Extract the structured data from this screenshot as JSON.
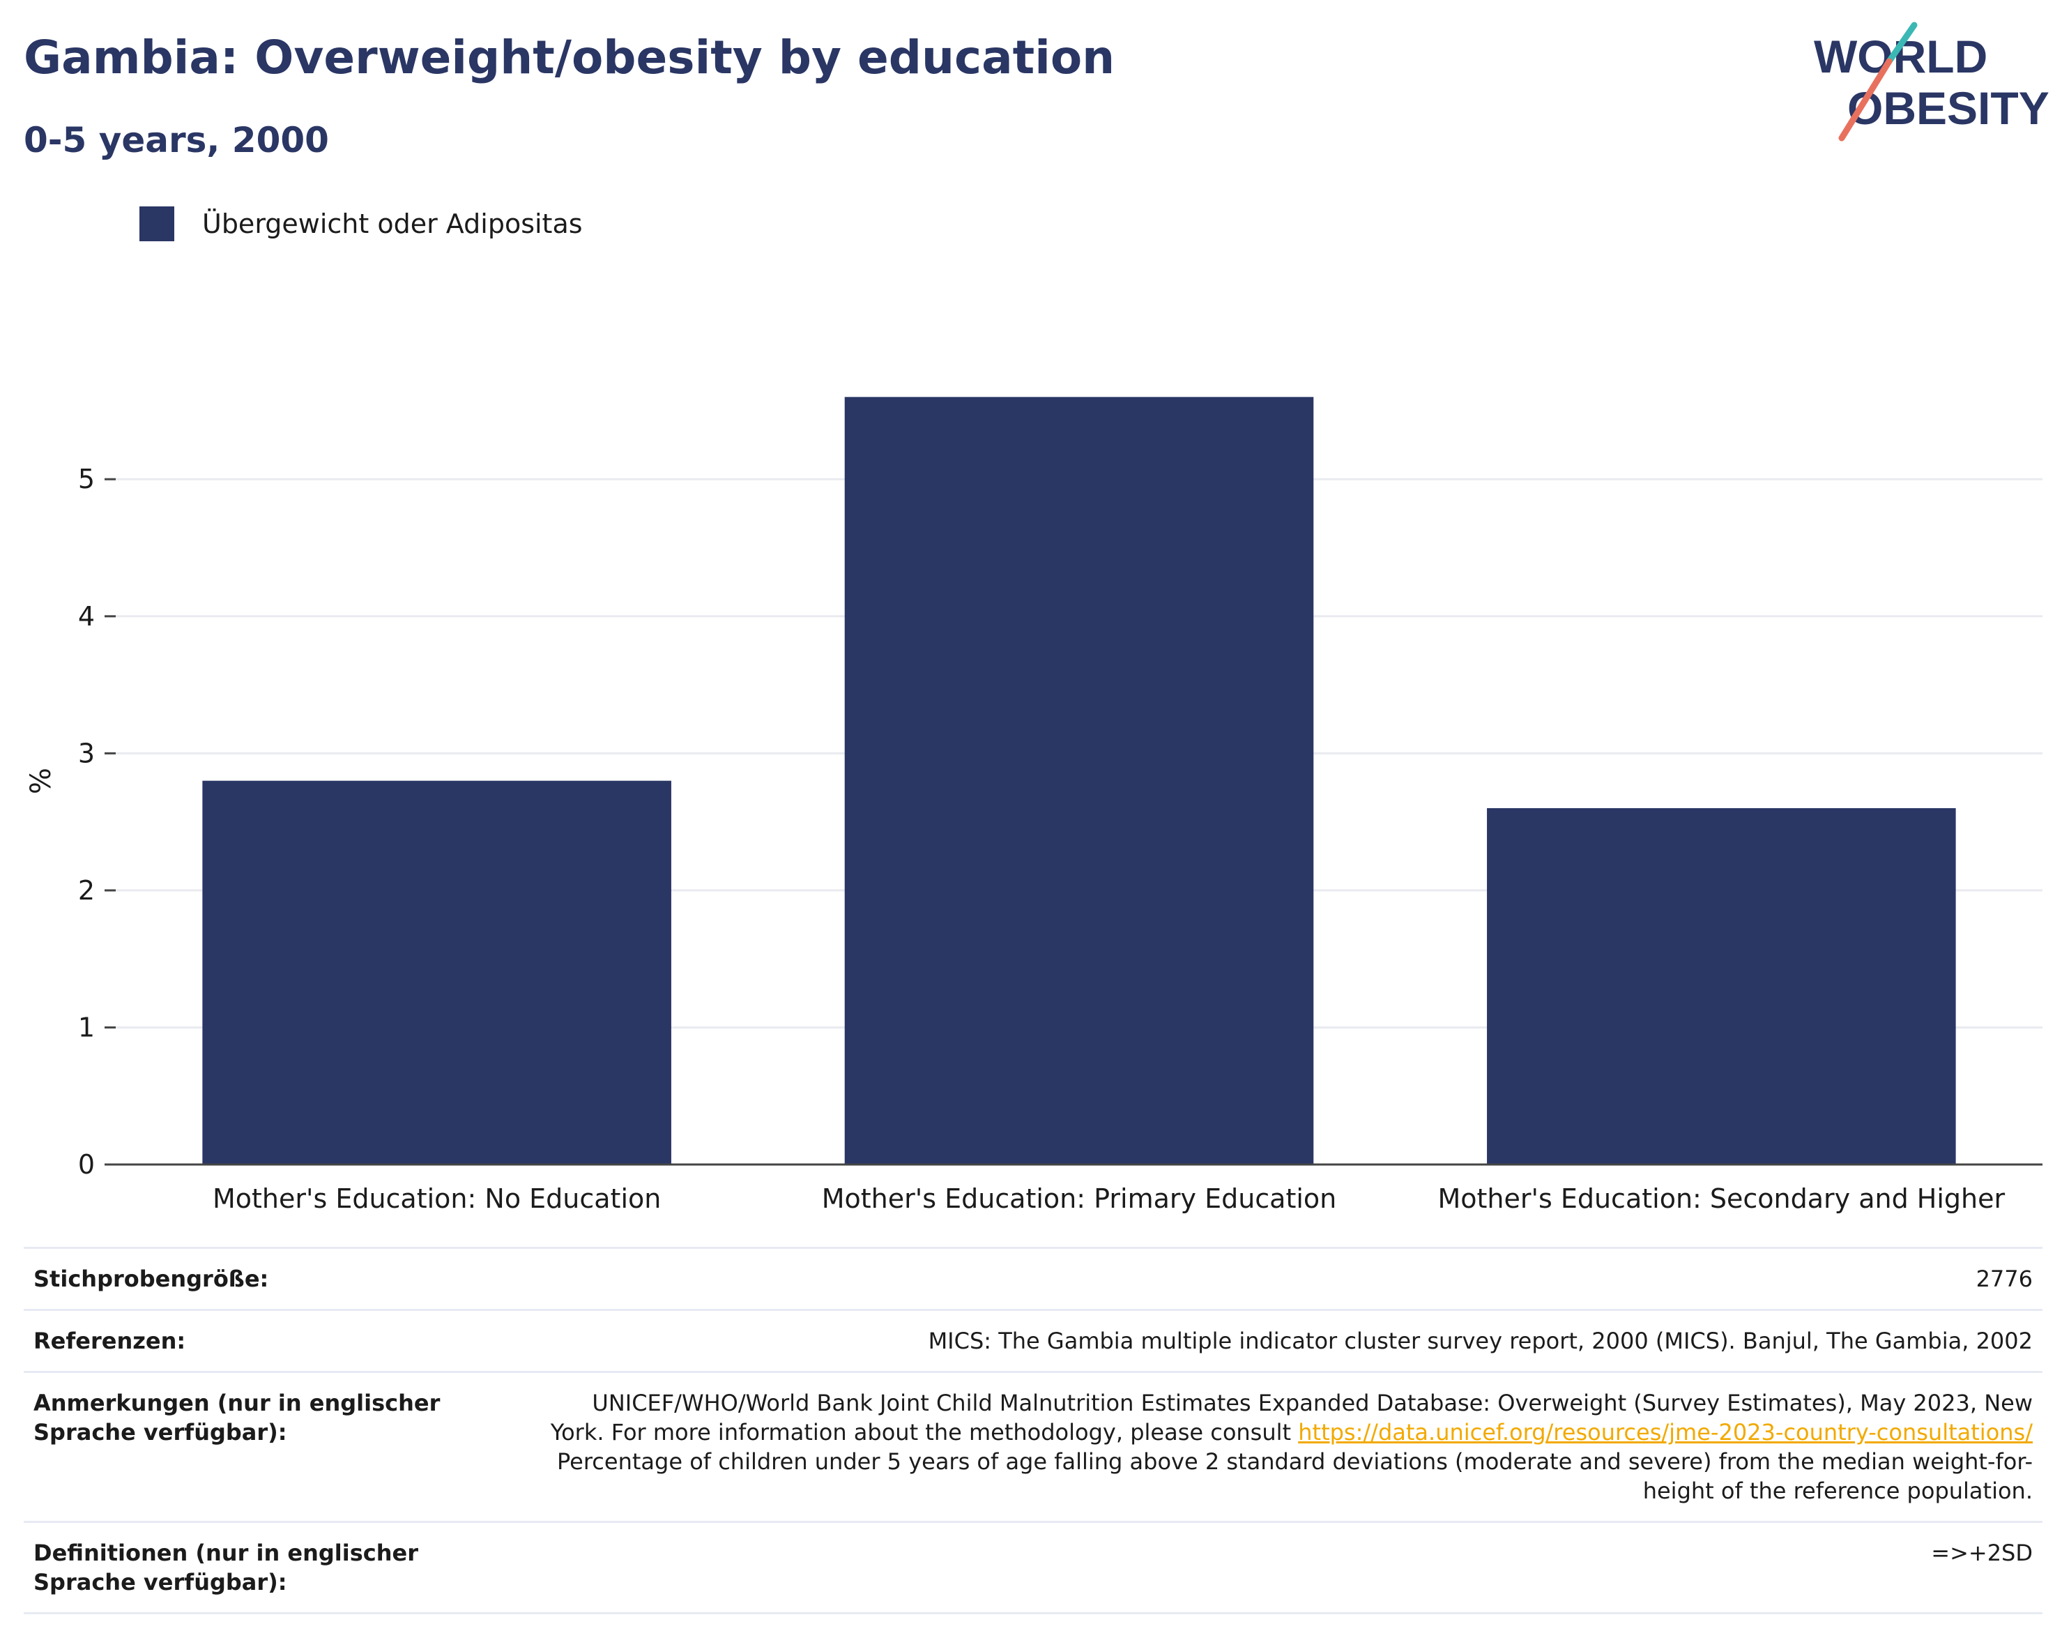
{
  "header": {
    "title": "Gambia: Overweight/obesity by education",
    "subtitle": "0-5 years, 2000",
    "logo_text": [
      "WORLD",
      "OBESITY"
    ]
  },
  "legend": {
    "label": "Übergewicht oder Adipositas",
    "color": "#2a3664"
  },
  "chart_data": {
    "type": "bar",
    "categories": [
      "Mother's Education: No Education",
      "Mother's Education: Primary Education",
      "Mother's Education: Secondary and Higher"
    ],
    "series": [
      {
        "name": "Übergewicht oder Adipositas",
        "values": [
          2.8,
          5.6,
          2.6
        ],
        "color": "#2a3664"
      }
    ],
    "ylabel": "%",
    "ylim": [
      0,
      5.8
    ],
    "yticks": [
      0,
      1,
      2,
      3,
      4,
      5
    ],
    "grid": true
  },
  "info": {
    "sample_label": "Stichprobengröße:",
    "sample_value": "2776",
    "ref_label": "Referenzen:",
    "ref_value": "MICS: The Gambia multiple indicator cluster survey report, 2000 (MICS). Banjul, The Gambia, 2002",
    "notes_label": "Anmerkungen (nur in englischer Sprache verfügbar):",
    "notes_text1": "UNICEF/WHO/World Bank Joint Child Malnutrition Estimates Expanded Database: Overweight (Survey Estimates), May 2023, New York. For more information about the methodology, please consult ",
    "notes_link": "https://data.unicef.org/resources/jme-2023-country-consultations/",
    "notes_text2": "Percentage of children under 5 years of age falling above 2 standard deviations (moderate and severe) from the median weight-for-height of the reference population.",
    "def_label": "Definitionen (nur in englischer Sprache verfügbar):",
    "def_value": "=>+2SD"
  },
  "colors": {
    "title": "#2a3664",
    "bar": "#2a3664",
    "logo_teal": "#3bb8b4",
    "logo_coral": "#e8715e",
    "link": "#f2a900"
  }
}
